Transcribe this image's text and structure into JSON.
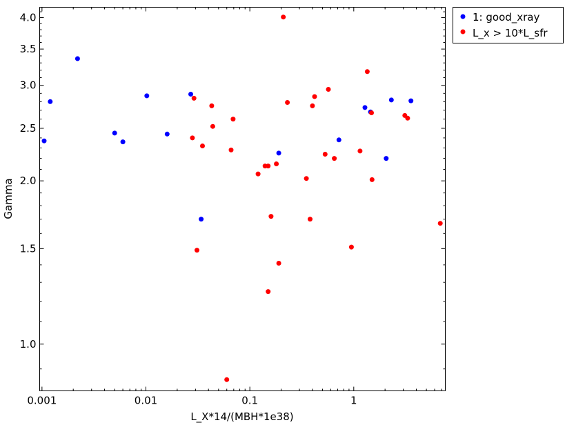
{
  "chart_data": {
    "type": "scatter",
    "xlabel": "L_X*14/(MBH*1e38)",
    "ylabel": "Gamma",
    "xscale": "log",
    "yscale": "log",
    "xlim": [
      0.00095,
      7.6
    ],
    "ylim": [
      0.82,
      4.18
    ],
    "xticks": [
      {
        "value": 0.001,
        "label": "0.001"
      },
      {
        "value": 0.01,
        "label": "0.01"
      },
      {
        "value": 0.1,
        "label": "0.1"
      },
      {
        "value": 1,
        "label": "1"
      }
    ],
    "yticks": [
      {
        "value": 1.0,
        "label": "1.0"
      },
      {
        "value": 1.5,
        "label": "1.5"
      },
      {
        "value": 2.0,
        "label": "2.0"
      },
      {
        "value": 2.5,
        "label": "2.5"
      },
      {
        "value": 3.0,
        "label": "3.0"
      },
      {
        "value": 3.5,
        "label": "3.5"
      },
      {
        "value": 4.0,
        "label": "4.0"
      }
    ],
    "grid": false,
    "legend_position": "outside-top-right",
    "series": [
      {
        "name": "1: good_xray",
        "color": "#0000ff",
        "points": [
          [
            0.00105,
            2.37
          ],
          [
            0.0012,
            2.8
          ],
          [
            0.0022,
            3.36
          ],
          [
            0.005,
            2.45
          ],
          [
            0.006,
            2.36
          ],
          [
            0.0102,
            2.87
          ],
          [
            0.016,
            2.44
          ],
          [
            0.027,
            2.89
          ],
          [
            0.034,
            1.7
          ],
          [
            0.19,
            2.25
          ],
          [
            0.72,
            2.38
          ],
          [
            1.28,
            2.73
          ],
          [
            1.45,
            2.68
          ],
          [
            2.05,
            2.2
          ],
          [
            2.3,
            2.82
          ],
          [
            3.55,
            2.81
          ]
        ]
      },
      {
        "name": "L_x > 10*L_sfr",
        "color": "#ff0000",
        "points": [
          [
            0.029,
            2.84
          ],
          [
            0.028,
            2.4
          ],
          [
            0.031,
            1.49
          ],
          [
            0.035,
            2.32
          ],
          [
            0.043,
            2.75
          ],
          [
            0.044,
            2.52
          ],
          [
            0.066,
            2.28
          ],
          [
            0.069,
            2.6
          ],
          [
            0.06,
            0.86
          ],
          [
            0.12,
            2.06
          ],
          [
            0.14,
            2.13
          ],
          [
            0.15,
            2.13
          ],
          [
            0.15,
            1.25
          ],
          [
            0.16,
            1.72
          ],
          [
            0.18,
            2.15
          ],
          [
            0.19,
            1.41
          ],
          [
            0.21,
            4.01
          ],
          [
            0.23,
            2.79
          ],
          [
            0.35,
            2.02
          ],
          [
            0.38,
            1.7
          ],
          [
            0.4,
            2.75
          ],
          [
            0.42,
            2.86
          ],
          [
            0.53,
            2.24
          ],
          [
            0.57,
            2.95
          ],
          [
            0.65,
            2.2
          ],
          [
            0.95,
            1.51
          ],
          [
            1.15,
            2.27
          ],
          [
            1.35,
            3.18
          ],
          [
            1.48,
            2.67
          ],
          [
            1.5,
            2.01
          ],
          [
            3.1,
            2.64
          ],
          [
            3.3,
            2.61
          ],
          [
            6.8,
            1.67
          ]
        ]
      }
    ]
  }
}
